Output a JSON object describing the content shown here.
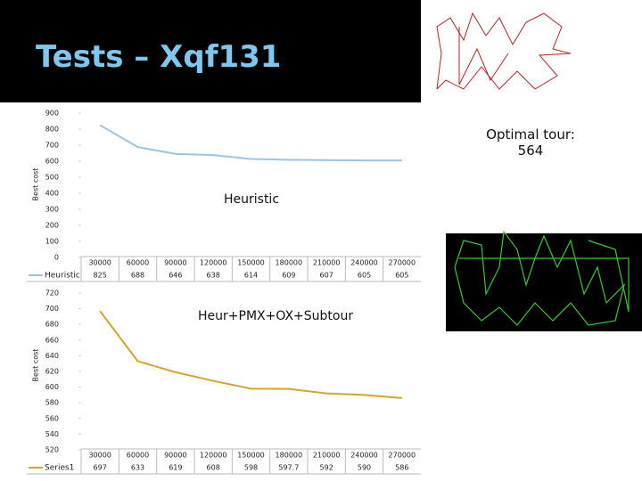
{
  "title": "Tests – Xqf131",
  "note": "Optimal tour: 564",
  "chart_data": [
    {
      "type": "line",
      "title": "Heuristic",
      "y_label": "Best cost",
      "categories": [
        30000,
        60000,
        90000,
        120000,
        150000,
        180000,
        210000,
        240000,
        270000
      ],
      "series": [
        {
          "name": "Heuristic",
          "color": "#9dc3e6",
          "values": [
            825,
            688,
            646,
            638,
            614,
            609,
            607,
            605,
            605
          ]
        }
      ],
      "ylim": [
        0,
        900
      ],
      "yticks": [
        0,
        100,
        200,
        300,
        400,
        500,
        600,
        700,
        800,
        900
      ]
    },
    {
      "type": "line",
      "title": "Heur+PMX+OX+Subtour",
      "y_label": "Best cost",
      "categories": [
        30000,
        60000,
        90000,
        120000,
        150000,
        180000,
        210000,
        240000,
        270000
      ],
      "series": [
        {
          "name": "Series1",
          "color": "#d4a52a",
          "values": [
            697,
            633,
            619,
            608,
            598,
            597.7,
            592,
            590,
            586
          ]
        }
      ],
      "ylim": [
        520,
        720
      ],
      "yticks": [
        520,
        540,
        560,
        580,
        600,
        620,
        640,
        660,
        680,
        700,
        720
      ]
    }
  ]
}
